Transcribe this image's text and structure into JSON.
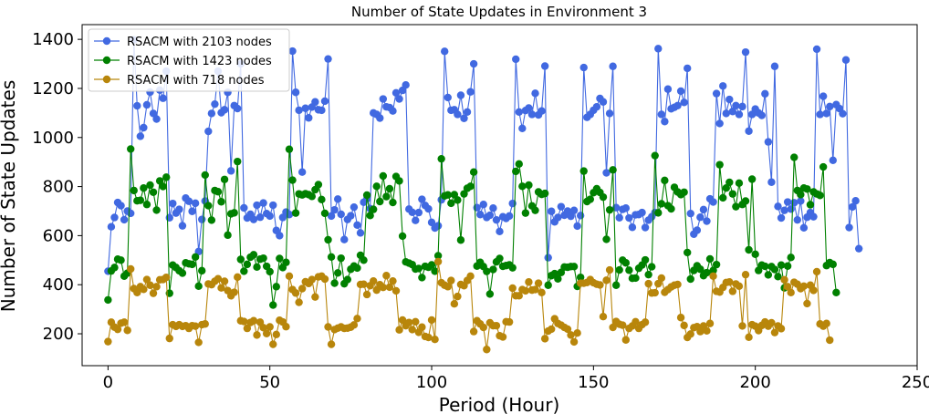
{
  "chart_data": {
    "type": "line",
    "title": "Number of State Updates in Environment 3",
    "xlabel": "Period (Hour)",
    "ylabel": "Number of State Updates",
    "xlim": [
      -8,
      250
    ],
    "ylim": [
      70,
      1460
    ],
    "xticks": [
      0,
      50,
      100,
      150,
      200,
      250
    ],
    "yticks": [
      200,
      400,
      600,
      800,
      1000,
      1200,
      1400
    ],
    "grid": false,
    "legend_position": "top-left",
    "marker": "circle",
    "series": [
      {
        "name": "RSACM with 2103 nodes",
        "color": "#4169e1",
        "values": [
          455,
          636,
          674,
          735,
          722,
          665,
          700,
          691,
          1398,
          1129,
          1005,
          1040,
          1133,
          1185,
          1098,
          1075,
          1193,
          1160,
          1270,
          673,
          731,
          692,
          707,
          640,
          753,
          740,
          699,
          732,
          535,
          666,
          741,
          1025,
          1098,
          1136,
          1270,
          1101,
          1113,
          1184,
          864,
          1130,
          1118,
          1300,
          713,
          672,
          687,
          666,
          724,
          675,
          733,
          690,
          680,
          724,
          621,
          600,
          674,
          696,
          686,
          1352,
          1184,
          1111,
          859,
          1119,
          1080,
          1124,
          1145,
          1113,
          1111,
          1148,
          1320,
          680,
          705,
          749,
          687,
          584,
          666,
          681,
          716,
          643,
          611,
          736,
          750,
          710,
          1100,
          1094,
          1079,
          1157,
          1125,
          1122,
          1108,
          1182,
          1157,
          1192,
          1214,
          708,
          695,
          662,
          694,
          748,
          723,
          709,
          654,
          631,
          640,
          746,
          1351,
          1163,
          1111,
          1113,
          1094,
          1172,
          1078,
          1104,
          1186,
          1300,
          714,
          686,
          727,
          674,
          683,
          712,
          664,
          617,
          677,
          670,
          680,
          731,
          1319,
          1104,
          1037,
          1110,
          1120,
          1094,
          1180,
          1092,
          1108,
          1291,
          510,
          699,
          656,
          674,
          718,
          683,
          700,
          679,
          703,
          639,
          682,
          1285,
          1082,
          1094,
          1111,
          1125,
          1159,
          1145,
          856,
          1098,
          1290,
          714,
          673,
          707,
          712,
          672,
          634,
          685,
          686,
          694,
          633,
          663,
          677,
          694,
          1362,
          1094,
          1065,
          1197,
          1117,
          1123,
          1130,
          1189,
          1143,
          1282,
          690,
          606,
          622,
          675,
          706,
          659,
          750,
          737,
          1179,
          1057,
          1210,
          1098,
          1155,
          1106,
          1130,
          1094,
          1126,
          1348,
          1026,
          1094,
          1116,
          1100,
          1090,
          1178,
          982,
          818,
          1290,
          719,
          672,
          703,
          737,
          708,
          734,
          664,
          741,
          632,
          675,
          694,
          677,
          1360,
          1094,
          1168,
          1098,
          1126,
          907,
          1134,
          1118,
          1097,
          1316,
          633,
          717,
          742,
          547
        ]
      },
      {
        "name": "RSACM with 1423 nodes",
        "color": "#008000",
        "values": [
          338,
          456,
          470,
          504,
          500,
          435,
          447,
          953,
          784,
          742,
          744,
          794,
          727,
          806,
          777,
          704,
          823,
          800,
          838,
          365,
          480,
          470,
          457,
          447,
          489,
          485,
          483,
          513,
          394,
          457,
          847,
          722,
          663,
          784,
          779,
          738,
          829,
          602,
          689,
          693,
          902,
          503,
          455,
          483,
          512,
          522,
          472,
          504,
          508,
          475,
          453,
          317,
          392,
          507,
          470,
          491,
          952,
          826,
          692,
          770,
          766,
          771,
          767,
          760,
          787,
          808,
          747,
          691,
          583,
          513,
          406,
          448,
          508,
          404,
          421,
          463,
          476,
          468,
          520,
          500,
          765,
          682,
          707,
          801,
          739,
          843,
          759,
          791,
          735,
          841,
          823,
          598,
          493,
          488,
          482,
          464,
          466,
          429,
          475,
          471,
          481,
          455,
          518,
          913,
          762,
          766,
          732,
          767,
          745,
          582,
          770,
          793,
          801,
          859,
          476,
          491,
          474,
          454,
          362,
          462,
          493,
          507,
          475,
          478,
          481,
          469,
          862,
          892,
          801,
          692,
          806,
          721,
          703,
          778,
          768,
          772,
          398,
          437,
          445,
          424,
          450,
          472,
          471,
          474,
          474,
          393,
          430,
          863,
          739,
          748,
          775,
          791,
          776,
          757,
          585,
          705,
          868,
          398,
          460,
          500,
          489,
          459,
          426,
          427,
          467,
          480,
          501,
          441,
          473,
          926,
          693,
          730,
          825,
          722,
          709,
          797,
          778,
          767,
          777,
          531,
          423,
          458,
          477,
          463,
          437,
          449,
          505,
          458,
          482,
          889,
          754,
          794,
          817,
          770,
          718,
          814,
          727,
          741,
          542,
          830,
          524,
          458,
          480,
          475,
          440,
          474,
          462,
          433,
          480,
          387,
          476,
          511,
          919,
          784,
          767,
          794,
          790,
          726,
          778,
          770,
          764,
          880,
          478,
          490,
          483,
          368
        ]
      },
      {
        "name": "RSACM with 718 nodes",
        "color": "#b8860b",
        "values": [
          168,
          247,
          227,
          218,
          243,
          247,
          214,
          464,
          384,
          368,
          392,
          381,
          421,
          398,
          365,
          392,
          420,
          421,
          430,
          181,
          237,
          230,
          237,
          230,
          233,
          222,
          233,
          231,
          165,
          237,
          240,
          403,
          400,
          414,
          424,
          387,
          414,
          376,
          355,
          369,
          431,
          253,
          250,
          222,
          246,
          253,
          195,
          247,
          225,
          201,
          228,
          157,
          197,
          255,
          248,
          229,
          435,
          380,
          366,
          328,
          384,
          412,
          405,
          421,
          350,
          432,
          435,
          423,
          228,
          157,
          217,
          223,
          228,
          222,
          223,
          227,
          236,
          262,
          401,
          402,
          360,
          396,
          415,
          378,
          400,
          389,
          437,
          390,
          415,
          375,
          216,
          256,
          233,
          246,
          217,
          249,
          206,
          227,
          189,
          185,
          256,
          177,
          494,
          408,
          398,
          392,
          417,
          322,
          352,
          401,
          396,
          417,
          435,
          209,
          253,
          240,
          226,
          136,
          245,
          233,
          233,
          192,
          187,
          249,
          248,
          386,
          355,
          355,
          380,
          375,
          411,
          378,
          380,
          406,
          368,
          180,
          211,
          219,
          261,
          242,
          235,
          226,
          219,
          195,
          167,
          203,
          406,
          406,
          409,
          421,
          408,
          402,
          399,
          270,
          418,
          460,
          226,
          250,
          239,
          235,
          175,
          222,
          232,
          249,
          222,
          237,
          247,
          404,
          366,
          367,
          404,
          427,
          369,
          380,
          391,
          398,
          401,
          266,
          234,
          185,
          199,
          225,
          229,
          209,
          232,
          212,
          242,
          435,
          373,
          370,
          389,
          409,
          411,
          373,
          403,
          394,
          232,
          441,
          186,
          237,
          231,
          213,
          234,
          248,
          231,
          245,
          205,
          232,
          221,
          420,
          392,
          368,
          410,
          402,
          384,
          394,
          323,
          398,
          377,
          453,
          240,
          231,
          242,
          174
        ]
      }
    ]
  }
}
